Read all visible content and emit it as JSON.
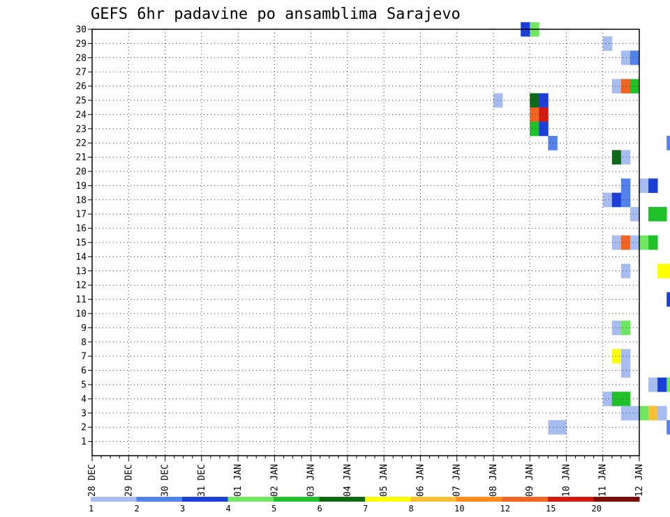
{
  "chart_data": {
    "type": "heatmap",
    "title": "GEFS 6hr padavine po ansamblima Sarajevo",
    "xlabel": "",
    "ylabel": "",
    "x_tick_labels": [
      "28 DEC",
      "29 DEC",
      "30 DEC",
      "31 DEC",
      "01 JAN",
      "02 JAN",
      "03 JAN",
      "04 JAN",
      "05 JAN",
      "06 JAN",
      "07 JAN",
      "08 JAN",
      "09 JAN",
      "10 JAN",
      "11 JAN",
      "12 JAN"
    ],
    "y_tick_labels": [
      "1",
      "2",
      "3",
      "4",
      "5",
      "6",
      "7",
      "8",
      "9",
      "10",
      "11",
      "12",
      "13",
      "14",
      "15",
      "16",
      "17",
      "18",
      "19",
      "20",
      "21",
      "22",
      "23",
      "24",
      "25",
      "26",
      "27",
      "28",
      "29",
      "30"
    ],
    "steps_per_day": 4,
    "ylim": [
      0,
      30
    ],
    "grid": true,
    "colorbar": {
      "labels": [
        "1",
        "2",
        "3",
        "4",
        "5",
        "6",
        "7",
        "8",
        "10",
        "12",
        "15",
        "20"
      ],
      "colors": [
        "#a7bcf0",
        "#5482eb",
        "#1c3fd8",
        "#70e760",
        "#21c12a",
        "#0c6b14",
        "#ffff00",
        "#ffbf33",
        "#ff8c1a",
        "#f06522",
        "#d21c12",
        "#7c0a05"
      ]
    },
    "rows": [
      {
        "member": 30,
        "cells": [
          [
            47,
            3
          ],
          [
            48,
            4
          ],
          [
            71,
            1
          ],
          [
            74,
            1
          ],
          [
            77,
            1
          ],
          [
            80,
            2
          ],
          [
            83,
            1
          ],
          [
            86,
            1
          ],
          [
            89,
            1
          ],
          [
            92,
            1
          ],
          [
            95,
            4
          ],
          [
            100,
            1
          ]
        ]
      },
      {
        "member": 29,
        "cells": [
          [
            56,
            1
          ],
          [
            66,
            1
          ],
          [
            67,
            2
          ],
          [
            68,
            10
          ],
          [
            69,
            4
          ],
          [
            70,
            1
          ],
          [
            73,
            1
          ],
          [
            76,
            1
          ],
          [
            77,
            6
          ],
          [
            78,
            1
          ],
          [
            79,
            1
          ],
          [
            105,
            1
          ],
          [
            106,
            1
          ]
        ]
      },
      {
        "member": 28,
        "cells": [
          [
            58,
            1
          ],
          [
            59,
            2
          ],
          [
            66,
            2
          ],
          [
            75,
            1
          ],
          [
            82,
            4
          ]
        ]
      },
      {
        "member": 27,
        "cells": [
          [
            66,
            1
          ],
          [
            67,
            11
          ],
          [
            84,
            3
          ],
          [
            85,
            3
          ],
          [
            86,
            1
          ],
          [
            87,
            1
          ],
          [
            88,
            1
          ],
          [
            89,
            2
          ]
        ]
      },
      {
        "member": 26,
        "cells": [
          [
            57,
            1
          ],
          [
            58,
            10
          ],
          [
            59,
            5
          ],
          [
            105,
            5
          ],
          [
            106,
            1
          ]
        ]
      },
      {
        "member": 25,
        "cells": [
          [
            44,
            1
          ],
          [
            48,
            6
          ],
          [
            49,
            3
          ],
          [
            65,
            2
          ],
          [
            66,
            2
          ],
          [
            67,
            2
          ],
          [
            68,
            1
          ],
          [
            69,
            9
          ],
          [
            70,
            9
          ],
          [
            71,
            8
          ],
          [
            72,
            1
          ],
          [
            73,
            1
          ],
          [
            101,
            1
          ],
          [
            102,
            2
          ]
        ]
      },
      {
        "member": 24,
        "cells": [
          [
            48,
            10
          ],
          [
            49,
            11
          ],
          [
            67,
            1
          ],
          [
            71,
            5
          ],
          [
            72,
            5
          ],
          [
            75,
            1
          ],
          [
            97,
            1
          ],
          [
            98,
            1
          ]
        ]
      },
      {
        "member": 23,
        "cells": [
          [
            48,
            5
          ],
          [
            49,
            3
          ],
          [
            69,
            2
          ],
          [
            71,
            1
          ],
          [
            72,
            4
          ],
          [
            73,
            1
          ],
          [
            74,
            1
          ],
          [
            75,
            1
          ],
          [
            76,
            2
          ],
          [
            77,
            1
          ],
          [
            88,
            5
          ],
          [
            89,
            4
          ],
          [
            92,
            1
          ],
          [
            93,
            2
          ],
          [
            94,
            4
          ]
        ]
      },
      {
        "member": 22,
        "cells": [
          [
            50,
            2
          ],
          [
            63,
            2
          ],
          [
            71,
            20
          ],
          [
            72,
            15
          ],
          [
            73,
            6
          ],
          [
            74,
            5
          ],
          [
            75,
            2
          ],
          [
            76,
            2
          ],
          [
            86,
            5
          ],
          [
            87,
            10
          ],
          [
            88,
            7
          ],
          [
            89,
            7
          ],
          [
            90,
            1
          ],
          [
            94,
            1
          ],
          [
            95,
            3
          ]
        ]
      },
      {
        "member": 21,
        "cells": [
          [
            57,
            6
          ],
          [
            58,
            1
          ],
          [
            77,
            1
          ],
          [
            78,
            3
          ],
          [
            79,
            2
          ],
          [
            103,
            7
          ],
          [
            104,
            7
          ],
          [
            105,
            2
          ],
          [
            106,
            3
          ]
        ]
      },
      {
        "member": 20,
        "cells": [
          [
            67,
            4
          ],
          [
            68,
            12
          ],
          [
            69,
            11
          ],
          [
            70,
            2
          ],
          [
            75,
            1
          ],
          [
            84,
            1
          ],
          [
            108,
            2
          ]
        ]
      },
      {
        "member": 19,
        "cells": [
          [
            58,
            2
          ],
          [
            60,
            1
          ],
          [
            61,
            3
          ],
          [
            73,
            1
          ],
          [
            74,
            1
          ],
          [
            75,
            1
          ],
          [
            76,
            1
          ],
          [
            77,
            3
          ],
          [
            82,
            2
          ],
          [
            83,
            2
          ],
          [
            84,
            15
          ],
          [
            85,
            7
          ],
          [
            86,
            3
          ],
          [
            87,
            4
          ],
          [
            88,
            9
          ],
          [
            89,
            3
          ],
          [
            90,
            1
          ]
        ]
      },
      {
        "member": 18,
        "cells": [
          [
            56,
            1
          ],
          [
            57,
            3
          ],
          [
            58,
            2
          ],
          [
            69,
            2
          ],
          [
            79,
            4
          ],
          [
            80,
            2
          ],
          [
            82,
            1
          ],
          [
            92,
            2
          ],
          [
            93,
            2
          ],
          [
            94,
            1
          ],
          [
            96,
            1
          ],
          [
            97,
            2
          ],
          [
            98,
            1
          ],
          [
            99,
            12
          ],
          [
            100,
            6
          ],
          [
            101,
            4
          ],
          [
            102,
            5
          ]
        ]
      },
      {
        "member": 17,
        "cells": [
          [
            59,
            1
          ],
          [
            61,
            5
          ],
          [
            62,
            5
          ],
          [
            89,
            2
          ],
          [
            103,
            2
          ],
          [
            104,
            4
          ]
        ]
      },
      {
        "member": 16,
        "cells": [
          [
            68,
            4
          ],
          [
            69,
            10
          ]
        ]
      },
      {
        "member": 15,
        "cells": [
          [
            57,
            1
          ],
          [
            58,
            10
          ],
          [
            59,
            1
          ],
          [
            60,
            4
          ],
          [
            61,
            5
          ],
          [
            70,
            2
          ],
          [
            77,
            4
          ],
          [
            78,
            1
          ],
          [
            89,
            5
          ],
          [
            92,
            2
          ],
          [
            103,
            1
          ],
          [
            104,
            11
          ]
        ]
      },
      {
        "member": 14,
        "cells": [
          [
            68,
            5
          ],
          [
            69,
            5
          ],
          [
            70,
            20
          ],
          [
            71,
            2
          ],
          [
            72,
            2
          ],
          [
            73,
            1
          ],
          [
            74,
            1
          ],
          [
            76,
            1
          ],
          [
            96,
            1
          ],
          [
            97,
            2
          ],
          [
            98,
            3
          ],
          [
            99,
            2
          ],
          [
            100,
            4
          ],
          [
            101,
            1
          ]
        ]
      },
      {
        "member": 13,
        "cells": [
          [
            58,
            1
          ],
          [
            62,
            7
          ],
          [
            63,
            7
          ],
          [
            64,
            11
          ],
          [
            65,
            6
          ],
          [
            66,
            4
          ],
          [
            67,
            3
          ],
          [
            68,
            5
          ],
          [
            69,
            4
          ],
          [
            70,
            2
          ],
          [
            71,
            1
          ],
          [
            79,
            1
          ]
        ]
      },
      {
        "member": 12,
        "cells": [
          [
            103,
            3
          ],
          [
            104,
            2
          ],
          [
            105,
            4
          ]
        ]
      },
      {
        "member": 11,
        "cells": [
          [
            63,
            3
          ],
          [
            64,
            2
          ],
          [
            85,
            3
          ],
          [
            86,
            3
          ],
          [
            87,
            2
          ],
          [
            93,
            3
          ]
        ]
      },
      {
        "member": 10,
        "cells": [
          [
            65,
            1
          ],
          [
            66,
            10
          ],
          [
            67,
            5
          ],
          [
            77,
            1
          ],
          [
            86,
            3
          ],
          [
            87,
            3
          ],
          [
            88,
            2
          ],
          [
            98,
            1
          ],
          [
            99,
            2
          ],
          [
            106,
            1
          ]
        ]
      },
      {
        "member": 9,
        "cells": [
          [
            57,
            1
          ],
          [
            58,
            4
          ],
          [
            81,
            1
          ],
          [
            84,
            3
          ],
          [
            85,
            3
          ],
          [
            104,
            1
          ],
          [
            105,
            4
          ]
        ]
      },
      {
        "member": 8,
        "cells": [
          [
            83,
            1
          ]
        ]
      },
      {
        "member": 7,
        "cells": [
          [
            57,
            7
          ],
          [
            58,
            1
          ],
          [
            72,
            2
          ],
          [
            73,
            1
          ],
          [
            84,
            2
          ],
          [
            86,
            1
          ],
          [
            107,
            4
          ],
          [
            108,
            10
          ]
        ]
      },
      {
        "member": 6,
        "cells": [
          [
            58,
            1
          ],
          [
            65,
            1
          ],
          [
            66,
            1
          ],
          [
            67,
            11
          ],
          [
            68,
            2
          ],
          [
            69,
            3
          ],
          [
            70,
            1
          ],
          [
            72,
            4
          ],
          [
            86,
            1
          ],
          [
            87,
            1
          ],
          [
            88,
            1
          ],
          [
            89,
            2
          ],
          [
            90,
            1
          ],
          [
            91,
            7
          ],
          [
            92,
            1
          ],
          [
            93,
            11
          ],
          [
            94,
            1
          ],
          [
            95,
            2
          ],
          [
            96,
            1
          ],
          [
            97,
            1
          ],
          [
            107,
            1
          ]
        ]
      },
      {
        "member": 5,
        "cells": [
          [
            61,
            1
          ],
          [
            62,
            3
          ],
          [
            63,
            4
          ],
          [
            88,
            1
          ]
        ]
      },
      {
        "member": 4,
        "cells": [
          [
            56,
            1
          ],
          [
            57,
            5
          ],
          [
            58,
            5
          ],
          [
            72,
            3
          ]
        ]
      },
      {
        "member": 3,
        "cells": [
          [
            58,
            1
          ],
          [
            59,
            1
          ],
          [
            60,
            4
          ],
          [
            61,
            8
          ],
          [
            62,
            1
          ],
          [
            83,
            3
          ],
          [
            84,
            2
          ],
          [
            86,
            4
          ],
          [
            87,
            1
          ]
        ]
      },
      {
        "member": 2,
        "cells": [
          [
            50,
            1
          ],
          [
            51,
            1
          ],
          [
            63,
            2
          ],
          [
            64,
            2
          ],
          [
            65,
            1
          ],
          [
            89,
            6
          ],
          [
            90,
            11
          ],
          [
            91,
            10
          ],
          [
            92,
            3
          ],
          [
            93,
            10
          ],
          [
            94,
            12
          ],
          [
            95,
            2
          ],
          [
            97,
            3
          ],
          [
            98,
            4
          ],
          [
            99,
            1
          ]
        ]
      },
      {
        "member": 1,
        "cells": [
          [
            87,
            5
          ],
          [
            88,
            12
          ],
          [
            89,
            7
          ]
        ]
      }
    ]
  }
}
